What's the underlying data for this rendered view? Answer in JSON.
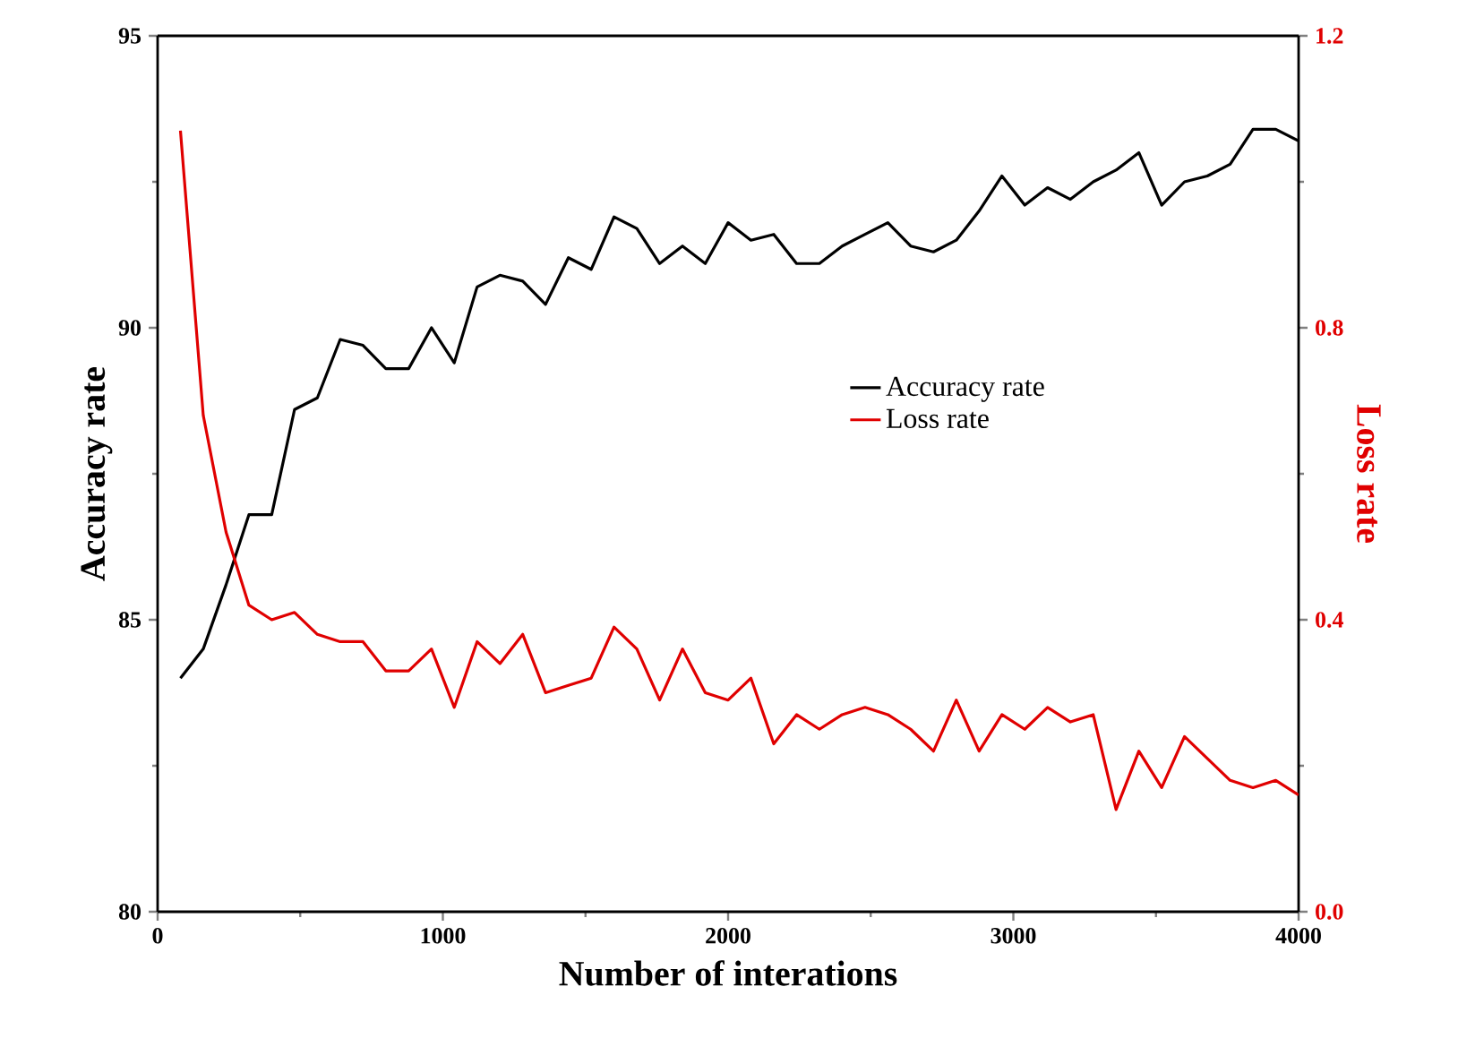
{
  "chart_data": {
    "type": "line",
    "xlabel": "Number of interations",
    "ylabel": "Accuracy rate",
    "y2label": "Loss rate",
    "x": [
      80,
      160,
      240,
      320,
      400,
      480,
      560,
      640,
      720,
      800,
      880,
      960,
      1040,
      1120,
      1200,
      1280,
      1360,
      1440,
      1520,
      1600,
      1680,
      1760,
      1840,
      1920,
      2000,
      2080,
      2160,
      2240,
      2320,
      2400,
      2480,
      2560,
      2640,
      2720,
      2800,
      2880,
      2960,
      3040,
      3120,
      3200,
      3280,
      3360,
      3440,
      3520,
      3600,
      3680,
      3760,
      3840,
      3920,
      4000
    ],
    "series": [
      {
        "name": "Accuracy rate",
        "color": "#000000",
        "values": [
          84.0,
          84.5,
          85.6,
          86.8,
          86.8,
          88.6,
          88.8,
          89.8,
          89.7,
          89.3,
          89.3,
          90.0,
          89.4,
          90.7,
          90.9,
          90.8,
          90.4,
          91.2,
          91.0,
          91.9,
          91.7,
          91.1,
          91.4,
          91.1,
          91.8,
          91.5,
          91.6,
          91.1,
          91.1,
          91.4,
          91.6,
          91.8,
          91.4,
          91.3,
          91.5,
          92.0,
          92.6,
          92.1,
          92.4,
          92.2,
          92.5,
          92.7,
          93.0,
          92.1,
          92.5,
          92.6,
          92.8,
          93.4,
          93.4,
          93.2
        ]
      },
      {
        "name": "Loss rate",
        "color": "#e00000",
        "axis": "y2",
        "values": [
          1.07,
          0.68,
          0.52,
          0.42,
          0.4,
          0.41,
          0.38,
          0.37,
          0.37,
          0.33,
          0.33,
          0.36,
          0.28,
          0.37,
          0.34,
          0.38,
          0.3,
          0.31,
          0.32,
          0.39,
          0.36,
          0.29,
          0.36,
          0.3,
          0.29,
          0.32,
          0.23,
          0.27,
          0.25,
          0.27,
          0.28,
          0.27,
          0.25,
          0.22,
          0.29,
          0.22,
          0.27,
          0.25,
          0.28,
          0.26,
          0.27,
          0.14,
          0.22,
          0.17,
          0.24,
          0.21,
          0.18,
          0.17,
          0.18,
          0.16
        ]
      }
    ],
    "xlim": [
      0,
      4000
    ],
    "xticks": [
      0,
      1000,
      2000,
      3000,
      4000
    ],
    "ylim": [
      80,
      95
    ],
    "yticks": [
      80,
      85,
      90,
      95
    ],
    "y2lim": [
      0.0,
      1.2
    ],
    "y2ticks": [
      {
        "value": 0,
        "label": "0.0"
      },
      0.4,
      0.8,
      1.2
    ],
    "legend": "right",
    "grid": false,
    "marker": "none",
    "line_style": "solid"
  }
}
